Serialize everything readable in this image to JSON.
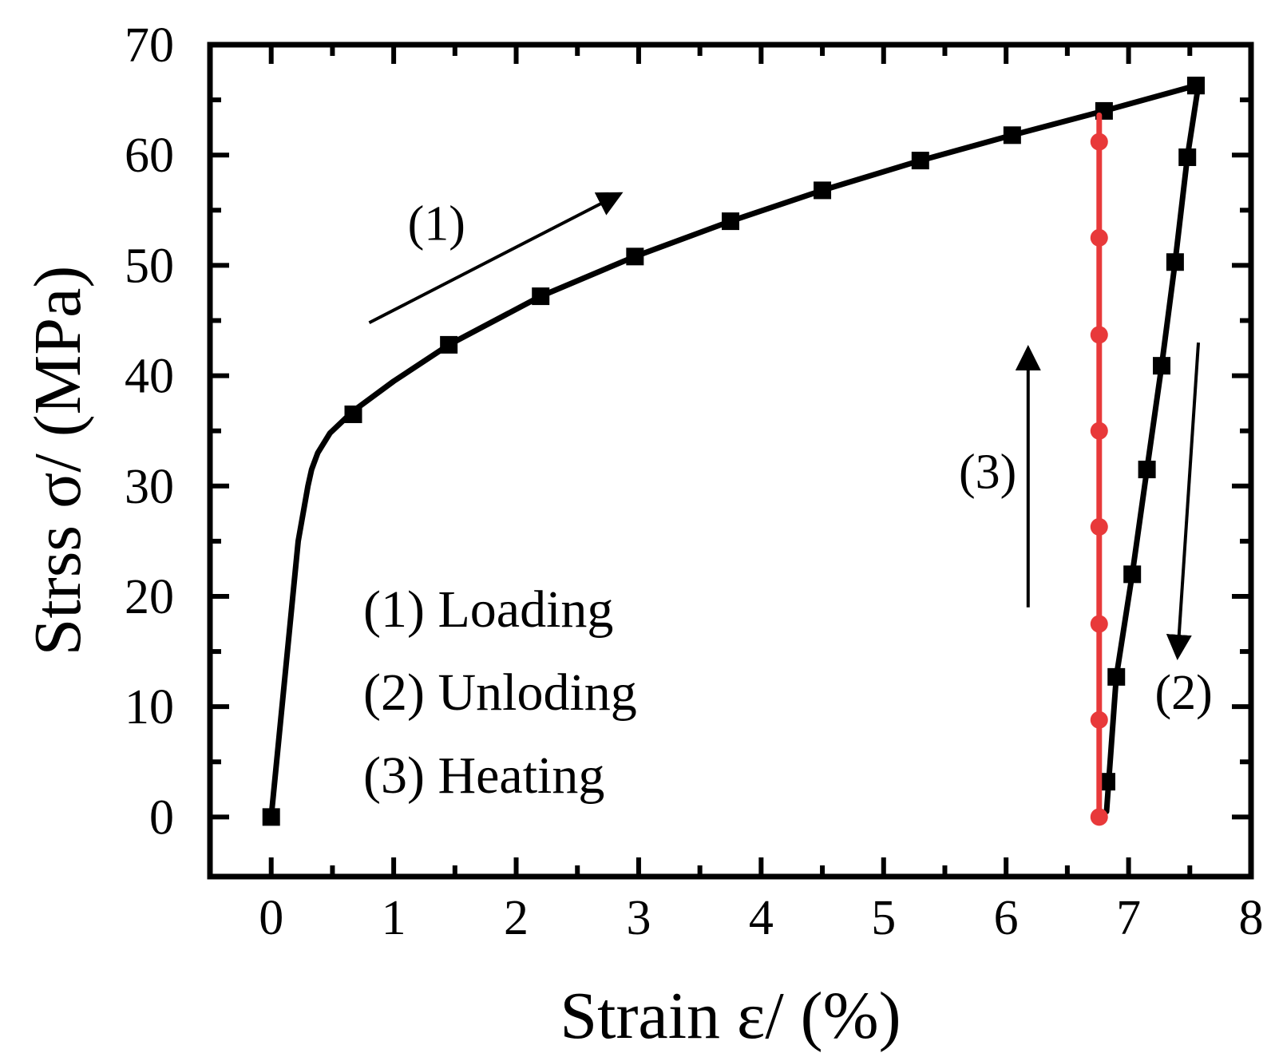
{
  "chart_data": {
    "type": "line",
    "xlabel": "Strain ε/ (%)",
    "ylabel": "Strss σ/ (MPa)",
    "xlim": [
      -0.5,
      8
    ],
    "ylim": [
      -5.4,
      70
    ],
    "xticks": [
      0,
      1,
      2,
      3,
      4,
      5,
      6,
      7,
      8
    ],
    "xtick_labels": [
      "0",
      "1",
      "2",
      "3",
      "4",
      "5",
      "6",
      "7",
      "8"
    ],
    "yticks": [
      0,
      10,
      20,
      30,
      40,
      50,
      60,
      70
    ],
    "ytick_labels": [
      "0",
      "10",
      "20",
      "30",
      "40",
      "50",
      "60",
      "70"
    ],
    "series": [
      {
        "name": "Loading",
        "color": "#000000",
        "marker": "square",
        "curve_x": [
          0,
          0.22,
          0.3,
          0.33,
          0.38,
          0.48,
          0.67,
          1.0,
          1.45,
          2.2,
          2.97,
          3.75,
          4.5,
          5.3,
          6.05,
          6.8,
          7.55
        ],
        "curve_y": [
          0,
          25,
          30,
          31.5,
          33,
          34.8,
          36.8,
          39.5,
          42.8,
          47.2,
          50.8,
          54.0,
          56.8,
          59.5,
          61.8,
          64.0,
          66.3
        ],
        "marker_x": [
          0,
          0.67,
          1.45,
          2.2,
          2.97,
          3.75,
          4.5,
          5.3,
          6.05,
          6.8,
          7.55
        ],
        "marker_y": [
          0,
          36.5,
          42.8,
          47.2,
          50.8,
          54.0,
          56.8,
          59.5,
          61.8,
          64.0,
          66.3
        ]
      },
      {
        "name": "Unloding",
        "color": "#000000",
        "marker": "square",
        "curve_x": [
          7.57,
          7.48,
          7.38,
          7.27,
          7.15,
          7.03,
          6.9,
          6.82
        ],
        "curve_y": [
          66.3,
          59.8,
          50.3,
          40.9,
          31.5,
          22.0,
          12.7,
          0.5
        ],
        "marker_x": [
          7.55,
          7.48,
          7.38,
          7.27,
          7.15,
          7.03,
          6.9,
          6.82
        ],
        "marker_y": [
          66.3,
          59.8,
          50.3,
          40.9,
          31.5,
          22.0,
          12.7,
          3.2
        ]
      },
      {
        "name": "Heating",
        "color": "#e8393a",
        "marker": "circle",
        "curve_x": [
          6.76,
          6.76,
          6.76,
          6.76,
          6.76,
          6.76,
          6.76,
          6.76,
          6.76
        ],
        "curve_y": [
          0,
          8.8,
          17.5,
          26.3,
          35.0,
          43.7,
          52.5,
          61.2,
          63.6
        ],
        "marker_x": [
          6.76,
          6.76,
          6.76,
          6.76,
          6.76,
          6.76,
          6.76,
          6.76
        ],
        "marker_y": [
          0,
          8.8,
          17.5,
          26.3,
          35.0,
          43.7,
          52.5,
          61.2
        ]
      }
    ],
    "annotations": [
      {
        "label": "(1)",
        "text_at": [
          1.35,
          52.3
        ],
        "arrow_from": [
          0.8,
          44.8
        ],
        "arrow_to": [
          2.85,
          56.5
        ]
      },
      {
        "label": "(3)",
        "text_at": [
          5.85,
          29.8
        ],
        "arrow_from": [
          6.18,
          19.0
        ],
        "arrow_to": [
          6.18,
          42.5
        ]
      },
      {
        "label": "(2)",
        "text_at": [
          7.45,
          9.8
        ],
        "arrow_from": [
          7.57,
          43.0
        ],
        "arrow_to": [
          7.4,
          14.5
        ]
      }
    ],
    "legend": {
      "placement": "lower-left inside",
      "entries": [
        "(1) Loading",
        "(2) Unloding",
        "(3) Heating"
      ]
    }
  }
}
